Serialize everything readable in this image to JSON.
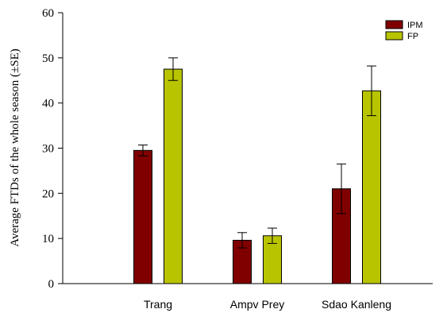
{
  "chart_data": {
    "type": "bar",
    "title": "",
    "xlabel": "",
    "ylabel": "Average FTDs of the whole season (±SE)",
    "ylim": [
      0,
      60
    ],
    "yticks": [
      0,
      10,
      20,
      30,
      40,
      50,
      60
    ],
    "categories": [
      "Trang",
      "Ampv Prey",
      "Sdao Kanleng"
    ],
    "series": [
      {
        "name": "IPM",
        "color": "#800000",
        "values": [
          29.5,
          9.6,
          21.0
        ],
        "errors": [
          1.2,
          1.7,
          5.5
        ]
      },
      {
        "name": "FP",
        "color": "#b9c400",
        "values": [
          47.5,
          10.6,
          42.7
        ],
        "errors": [
          2.5,
          1.7,
          5.5
        ]
      }
    ],
    "grid": false,
    "legend_position": "top-right"
  }
}
